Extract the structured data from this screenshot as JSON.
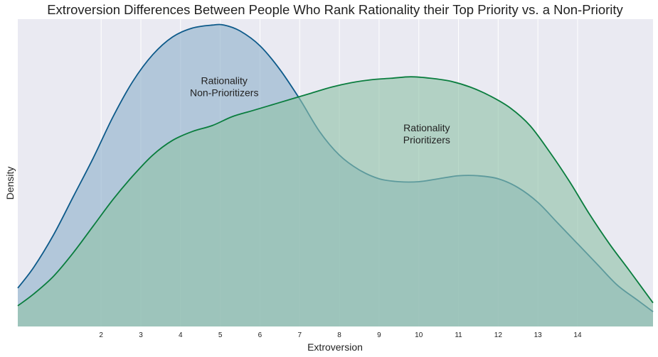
{
  "chart_data": {
    "type": "area",
    "title": "Extroversion Differences Between People Who Rank Rationality their Top Priority vs. a Non-Priority",
    "xlabel": "Extroversion",
    "ylabel": "Density",
    "xlim": [
      -0.1,
      15.9
    ],
    "ylim": [
      0,
      1
    ],
    "x_ticks": [
      "2",
      "3",
      "4",
      "5",
      "6",
      "7",
      "8",
      "9",
      "10",
      "11",
      "12",
      "13",
      "14"
    ],
    "y_ticks_shown": false,
    "grid": "vertical",
    "background": "#eaeaf2",
    "series": [
      {
        "label_text": "Rationality\nNon-Prioritizers",
        "line_color": "#0d5a8a",
        "fill_color": "#8fb1cc",
        "label_at": [
          5.1,
          0.82
        ],
        "x": [
          -0.1,
          0.3,
          0.8,
          1.3,
          1.8,
          2.3,
          2.8,
          3.3,
          3.8,
          4.3,
          4.8,
          5.1,
          5.5,
          6.0,
          6.5,
          7.0,
          7.5,
          8.0,
          8.5,
          9.0,
          9.5,
          10.0,
          10.5,
          11.0,
          11.5,
          12.0,
          12.5,
          13.0,
          13.5,
          14.0,
          14.5,
          15.0,
          15.5,
          15.9
        ],
        "y": [
          0.13,
          0.2,
          0.31,
          0.44,
          0.57,
          0.71,
          0.83,
          0.92,
          0.98,
          1.01,
          1.02,
          1.02,
          1.0,
          0.95,
          0.87,
          0.77,
          0.66,
          0.58,
          0.53,
          0.5,
          0.49,
          0.49,
          0.5,
          0.51,
          0.51,
          0.5,
          0.47,
          0.42,
          0.35,
          0.28,
          0.21,
          0.14,
          0.09,
          0.05
        ]
      },
      {
        "label_text": "Rationality\nPrioritizers",
        "line_color": "#0a7d3e",
        "fill_color": "#8fc1a8",
        "label_at": [
          10.2,
          0.66
        ],
        "x": [
          -0.1,
          0.3,
          0.8,
          1.3,
          1.8,
          2.3,
          2.8,
          3.3,
          3.8,
          4.3,
          4.8,
          5.3,
          5.8,
          6.3,
          6.8,
          7.3,
          7.8,
          8.3,
          8.8,
          9.3,
          9.8,
          10.3,
          10.8,
          11.3,
          11.8,
          12.3,
          12.8,
          13.3,
          13.8,
          14.3,
          14.8,
          15.3,
          15.9
        ],
        "y": [
          0.07,
          0.11,
          0.17,
          0.25,
          0.34,
          0.43,
          0.51,
          0.58,
          0.63,
          0.66,
          0.68,
          0.71,
          0.73,
          0.75,
          0.77,
          0.79,
          0.81,
          0.825,
          0.835,
          0.84,
          0.845,
          0.84,
          0.83,
          0.81,
          0.78,
          0.74,
          0.68,
          0.59,
          0.49,
          0.38,
          0.28,
          0.19,
          0.08
        ]
      }
    ]
  }
}
